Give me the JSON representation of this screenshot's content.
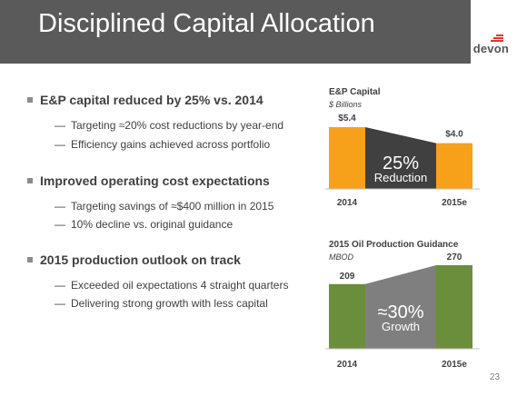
{
  "header": {
    "title": "Disciplined Capital Allocation"
  },
  "logo": {
    "text": "devon"
  },
  "bullets": [
    {
      "text": "E&P capital reduced by 25% vs. 2014",
      "subs": [
        "Targeting ≈20% cost reductions by year-end",
        "Efficiency gains achieved across portfolio"
      ]
    },
    {
      "text": "Improved operating cost expectations",
      "subs": [
        "Targeting savings of ≈$400 million in 2015",
        "10% decline vs. original guidance"
      ]
    },
    {
      "text": "2015 production outlook on track",
      "subs": [
        "Exceeded oil expectations 4 straight quarters",
        "Delivering strong growth with less capital"
      ]
    }
  ],
  "chart_data": [
    {
      "type": "bar",
      "title": "E&P Capital",
      "unit": "$ Billions",
      "categories": [
        "2014",
        "2015e"
      ],
      "values": [
        5.4,
        4.0
      ],
      "value_labels": [
        "$5.4",
        "$4.0"
      ],
      "annotation": {
        "big": "25%",
        "small": "Reduction"
      },
      "bar_color": "#f7a11a",
      "arrow_color": "#404040",
      "ylim": [
        0,
        5.4
      ]
    },
    {
      "type": "bar",
      "title": "2015 Oil Production Guidance",
      "unit": "MBOD",
      "categories": [
        "2014",
        "2015e"
      ],
      "values": [
        209,
        270
      ],
      "value_labels": [
        "209",
        "270"
      ],
      "annotation": {
        "big": "≈30%",
        "small": "Growth"
      },
      "bar_color": "#6b8e3c",
      "arrow_color": "#7f7f7f",
      "ylim": [
        0,
        270
      ]
    }
  ],
  "page_number": "23"
}
